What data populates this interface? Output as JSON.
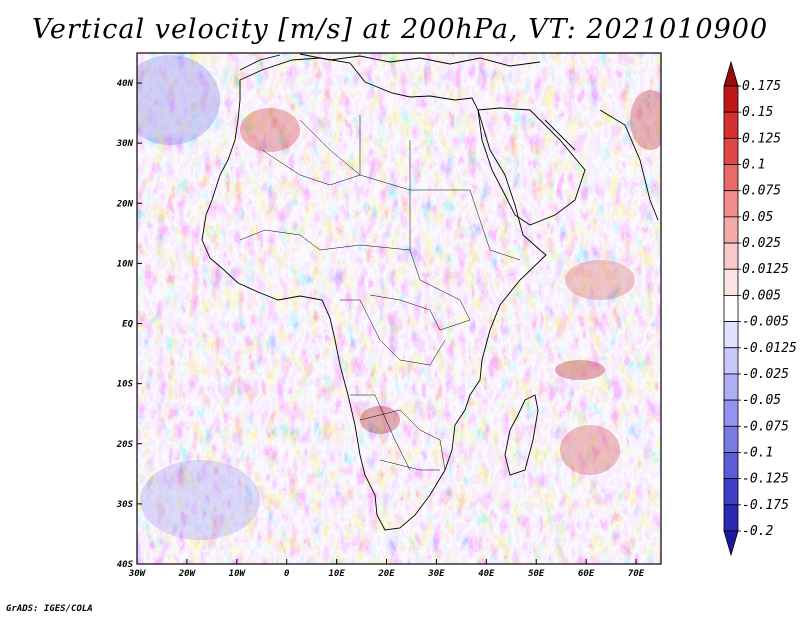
{
  "title": "Vertical velocity [m/s] at 200hPa, VT: 2021010900",
  "footer": "GrADS: IGES/COLA",
  "map": {
    "region": "Africa",
    "lon_range": [
      -30,
      75
    ],
    "lat_range": [
      -40,
      45
    ],
    "lon_ticks": [
      {
        "value": -30,
        "label": "30W"
      },
      {
        "value": -20,
        "label": "20W"
      },
      {
        "value": -10,
        "label": "10W"
      },
      {
        "value": 0,
        "label": "0"
      },
      {
        "value": 10,
        "label": "10E"
      },
      {
        "value": 20,
        "label": "20E"
      },
      {
        "value": 30,
        "label": "30E"
      },
      {
        "value": 40,
        "label": "40E"
      },
      {
        "value": 50,
        "label": "50E"
      },
      {
        "value": 60,
        "label": "60E"
      },
      {
        "value": 70,
        "label": "70E"
      }
    ],
    "lat_ticks": [
      {
        "value": 40,
        "label": "40N"
      },
      {
        "value": 30,
        "label": "30N"
      },
      {
        "value": 20,
        "label": "20N"
      },
      {
        "value": 10,
        "label": "10N"
      },
      {
        "value": 0,
        "label": "EQ"
      },
      {
        "value": -10,
        "label": "10S"
      },
      {
        "value": -20,
        "label": "20S"
      },
      {
        "value": -30,
        "label": "30S"
      },
      {
        "value": -40,
        "label": "40S"
      }
    ]
  },
  "colorbar": {
    "labels": [
      "0.175",
      "0.15",
      "0.125",
      "0.1",
      "0.075",
      "0.05",
      "0.025",
      "0.0125",
      "0.005",
      "-0.005",
      "-0.0125",
      "-0.025",
      "-0.05",
      "-0.075",
      "-0.1",
      "-0.125",
      "-0.175",
      "-0.2"
    ],
    "colors": [
      "#9a0a0a",
      "#c01818",
      "#d63030",
      "#e04848",
      "#ea6a6a",
      "#f08c8c",
      "#f5aaaa",
      "#f9c8c8",
      "#fce4e4",
      "#ffffff",
      "#e0e0ff",
      "#c8c8fa",
      "#aeaef5",
      "#9494ee",
      "#7a7ae4",
      "#5c5cd8",
      "#3e3ec8",
      "#2a2ab4",
      "#1a1a9c"
    ]
  }
}
